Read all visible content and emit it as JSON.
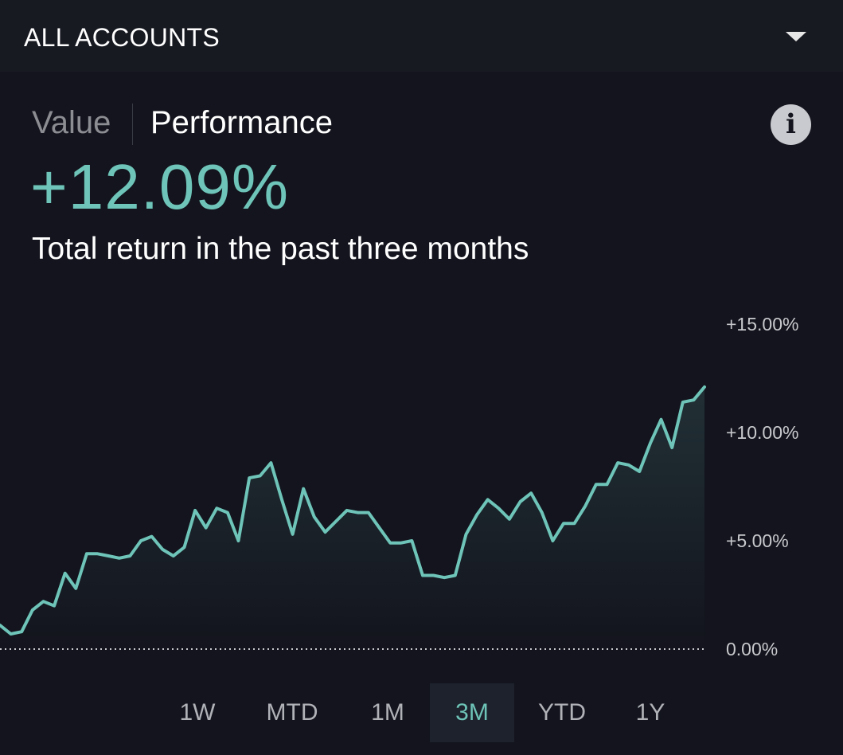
{
  "account_selector": {
    "label": "ALL ACCOUNTS",
    "icon": "chevron-down-icon"
  },
  "view_tabs": {
    "value_label": "Value",
    "performance_label": "Performance",
    "active": "Performance"
  },
  "info_icon": {
    "glyph": "i",
    "icon": "info-icon"
  },
  "summary": {
    "return_value": "+12.09%",
    "caption": "Total return in the past three months"
  },
  "colors": {
    "accent": "#6ec4b8",
    "background": "#13141d",
    "header_background": "#181a22"
  },
  "range_tabs": {
    "labels": [
      "1W",
      "MTD",
      "1M",
      "3M",
      "YTD",
      "1Y"
    ],
    "active": "3M"
  },
  "chart_data": {
    "type": "area",
    "title": "",
    "xlabel": "",
    "ylabel": "",
    "ylim": [
      0,
      15
    ],
    "y_ticks": [
      {
        "value": 0,
        "label": "0.00%"
      },
      {
        "value": 5,
        "label": "+5.00%"
      },
      {
        "value": 10,
        "label": "+10.00%"
      },
      {
        "value": 15,
        "label": "+15.00%"
      }
    ],
    "baseline": 0,
    "series": [
      {
        "values": [
          1.1,
          0.7,
          0.8,
          1.8,
          2.2,
          2.0,
          3.5,
          2.8,
          4.4,
          4.4,
          4.3,
          4.2,
          4.3,
          5.0,
          5.2,
          4.6,
          4.3,
          4.7,
          6.4,
          5.6,
          6.5,
          6.3,
          5.0,
          7.9,
          8.0,
          8.6,
          6.9,
          5.3,
          7.4,
          6.1,
          5.4,
          5.9,
          6.4,
          6.3,
          6.3,
          5.6,
          4.9,
          4.9,
          5.0,
          3.4,
          3.4,
          3.3,
          3.4,
          5.3,
          6.2,
          6.9,
          6.5,
          6.0,
          6.8,
          7.2,
          6.3,
          5.0,
          5.8,
          5.8,
          6.6,
          7.6,
          7.6,
          8.6,
          8.5,
          8.2,
          9.5,
          10.6,
          9.3,
          11.4,
          11.5,
          12.1
        ]
      }
    ],
    "grid": false,
    "legend": "none"
  }
}
